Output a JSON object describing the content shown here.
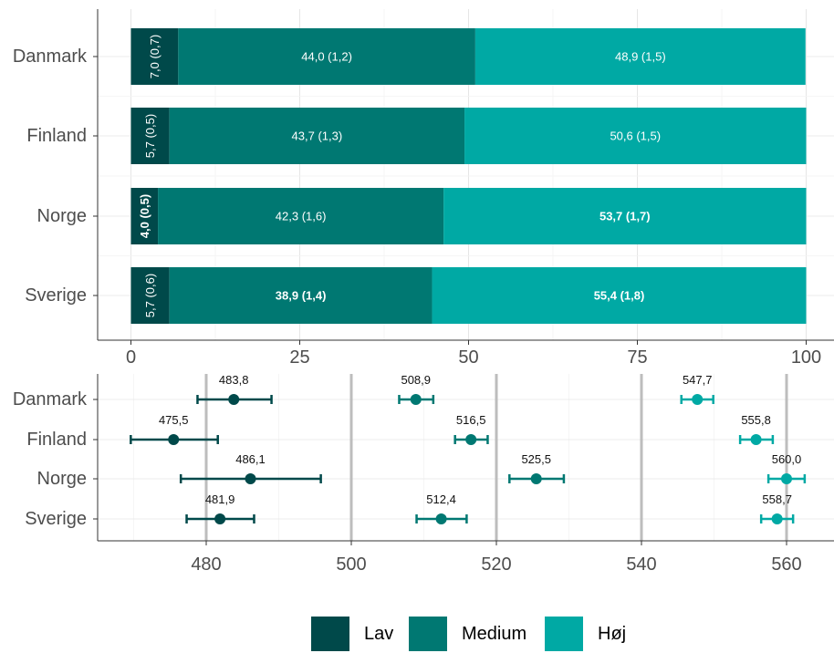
{
  "chart_data": [
    {
      "type": "bar",
      "orientation": "horizontal",
      "stacked": true,
      "categories": [
        "Danmark",
        "Finland",
        "Norge",
        "Sverige"
      ],
      "series": [
        {
          "name": "Lav",
          "color": "#00494a",
          "values": [
            7.0,
            5.7,
            4.0,
            5.7
          ],
          "labels": [
            "7,0 (0,7)",
            "5,7 (0,5)",
            "4,0 (0,5)",
            "5,7 (0,6)"
          ],
          "bold": [
            false,
            false,
            true,
            false
          ]
        },
        {
          "name": "Medium",
          "color": "#007872",
          "values": [
            44.0,
            43.7,
            42.3,
            38.9
          ],
          "labels": [
            "44,0 (1,2)",
            "43,7 (1,3)",
            "42,3 (1,6)",
            "38,9 (1,4)"
          ],
          "bold": [
            false,
            false,
            false,
            true
          ]
        },
        {
          "name": "Høj",
          "color": "#00a9a4",
          "values": [
            48.9,
            50.6,
            53.7,
            55.4
          ],
          "labels": [
            "48,9 (1,5)",
            "50,6 (1,5)",
            "53,7 (1,7)",
            "55,4 (1,8)"
          ],
          "bold": [
            false,
            false,
            true,
            true
          ]
        }
      ],
      "xlim": [
        0,
        100
      ],
      "xticks": [
        "0",
        "25",
        "50",
        "75",
        "100"
      ],
      "grid": true
    },
    {
      "type": "scatter",
      "subtype": "point-with-error-bars",
      "categories": [
        "Danmark",
        "Finland",
        "Norge",
        "Sverige"
      ],
      "series": [
        {
          "name": "Lav",
          "color": "#00494a",
          "values": [
            483.8,
            475.5,
            486.1,
            481.9
          ],
          "labels": [
            "483,8",
            "475,5",
            "486,1",
            "481,9"
          ],
          "ci_low": [
            478.8,
            469.6,
            476.5,
            477.3
          ],
          "ci_high": [
            489.0,
            481.6,
            495.8,
            486.6
          ]
        },
        {
          "name": "Medium",
          "color": "#007872",
          "values": [
            508.9,
            516.5,
            525.5,
            512.4
          ],
          "labels": [
            "508,9",
            "516,5",
            "525,5",
            "512,4"
          ],
          "ci_low": [
            506.6,
            514.3,
            521.8,
            509.0
          ],
          "ci_high": [
            511.3,
            518.8,
            529.3,
            515.9
          ]
        },
        {
          "name": "Høj",
          "color": "#00a9a4",
          "values": [
            547.7,
            555.8,
            560.0,
            558.7
          ],
          "labels": [
            "547,7",
            "555,8",
            "560,0",
            "558,7"
          ],
          "ci_low": [
            545.5,
            553.6,
            557.5,
            556.5
          ],
          "ci_high": [
            549.9,
            558.1,
            562.5,
            560.9
          ]
        }
      ],
      "xlim": [
        466.5,
        565.5
      ],
      "xticks": [
        "480",
        "500",
        "520",
        "540",
        "560"
      ],
      "reference_lines": [
        480,
        500,
        520,
        540,
        560
      ],
      "grid": true
    }
  ],
  "legend": {
    "position": "bottom",
    "items": [
      {
        "label": "Lav",
        "color": "#00494a"
      },
      {
        "label": "Medium",
        "color": "#007872"
      },
      {
        "label": "Høj",
        "color": "#00a9a4"
      }
    ]
  }
}
